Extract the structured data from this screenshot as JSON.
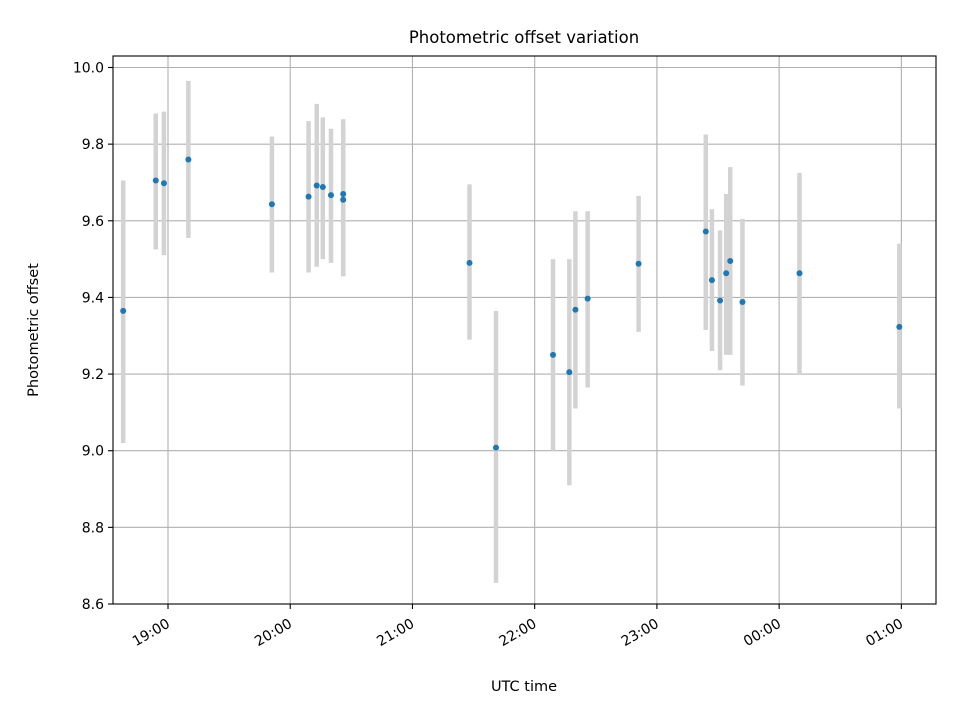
{
  "chart_data": {
    "type": "scatter",
    "title": "Photometric offset variation",
    "xlabel": "UTC time",
    "ylabel": "Photometric offset",
    "xlim": [
      "18:33",
      "01:17"
    ],
    "ylim": [
      8.6,
      10.03
    ],
    "x_ticks": [
      {
        "time": "19:00",
        "label": "19:00"
      },
      {
        "time": "20:00",
        "label": "20:00"
      },
      {
        "time": "21:00",
        "label": "21:00"
      },
      {
        "time": "22:00",
        "label": "22:00"
      },
      {
        "time": "23:00",
        "label": "23:00"
      },
      {
        "time": "00:00",
        "label": "00:00"
      },
      {
        "time": "01:00",
        "label": "01:00"
      }
    ],
    "y_ticks": [
      8.6,
      8.8,
      9.0,
      9.2,
      9.4,
      9.6,
      9.8,
      10.0
    ],
    "y_tick_labels": [
      "8.6",
      "8.8",
      "9.0",
      "9.2",
      "9.4",
      "9.6",
      "9.8",
      "10.0"
    ],
    "grid": true,
    "point_color": "#1f77b4",
    "errorbar_color": "#d3d3d3",
    "points": [
      {
        "time": "18:38",
        "y": 9.365,
        "lo": 9.02,
        "hi": 9.705
      },
      {
        "time": "18:54",
        "y": 9.705,
        "lo": 9.525,
        "hi": 9.88
      },
      {
        "time": "18:58",
        "y": 9.698,
        "lo": 9.51,
        "hi": 9.885
      },
      {
        "time": "19:10",
        "y": 9.76,
        "lo": 9.555,
        "hi": 9.965
      },
      {
        "time": "19:51",
        "y": 9.643,
        "lo": 9.465,
        "hi": 9.82
      },
      {
        "time": "20:09",
        "y": 9.663,
        "lo": 9.465,
        "hi": 9.86
      },
      {
        "time": "20:13",
        "y": 9.692,
        "lo": 9.48,
        "hi": 9.905
      },
      {
        "time": "20:16",
        "y": 9.688,
        "lo": 9.5,
        "hi": 9.87
      },
      {
        "time": "20:20",
        "y": 9.667,
        "lo": 9.49,
        "hi": 9.84
      },
      {
        "time": "20:26",
        "y": 9.67,
        "lo": 9.46,
        "hi": 9.865
      },
      {
        "time": "20:26",
        "y": 9.655,
        "lo": 9.455,
        "hi": 9.85
      },
      {
        "time": "21:28",
        "y": 9.49,
        "lo": 9.29,
        "hi": 9.695
      },
      {
        "time": "21:41",
        "y": 9.008,
        "lo": 8.655,
        "hi": 9.365
      },
      {
        "time": "22:09",
        "y": 9.25,
        "lo": 9.0,
        "hi": 9.5
      },
      {
        "time": "22:17",
        "y": 9.205,
        "lo": 8.91,
        "hi": 9.5
      },
      {
        "time": "22:20",
        "y": 9.368,
        "lo": 9.11,
        "hi": 9.625
      },
      {
        "time": "22:26",
        "y": 9.397,
        "lo": 9.165,
        "hi": 9.625
      },
      {
        "time": "22:51",
        "y": 9.488,
        "lo": 9.31,
        "hi": 9.665
      },
      {
        "time": "23:24",
        "y": 9.572,
        "lo": 9.315,
        "hi": 9.825
      },
      {
        "time": "23:27",
        "y": 9.445,
        "lo": 9.26,
        "hi": 9.63
      },
      {
        "time": "23:31",
        "y": 9.392,
        "lo": 9.21,
        "hi": 9.575
      },
      {
        "time": "23:34",
        "y": 9.463,
        "lo": 9.25,
        "hi": 9.67
      },
      {
        "time": "23:36",
        "y": 9.495,
        "lo": 9.25,
        "hi": 9.74
      },
      {
        "time": "23:42",
        "y": 9.388,
        "lo": 9.17,
        "hi": 9.605
      },
      {
        "time": "00:10",
        "y": 9.463,
        "lo": 9.2,
        "hi": 9.725
      },
      {
        "time": "00:59",
        "y": 9.323,
        "lo": 9.11,
        "hi": 9.54
      }
    ]
  }
}
